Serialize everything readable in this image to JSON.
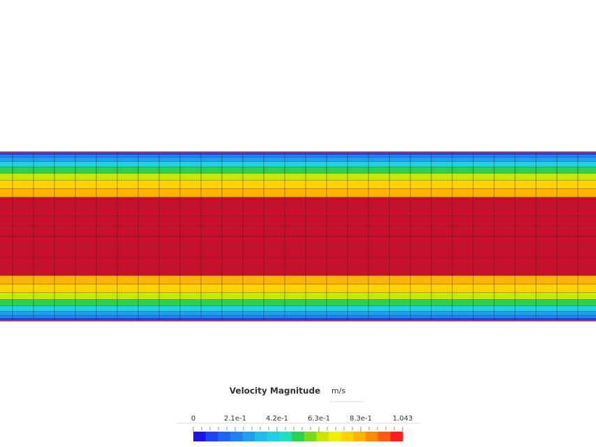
{
  "legend": {
    "title": "Velocity Magnitude",
    "unit": "m/s",
    "tick_labels": [
      "0",
      "2.1e-1",
      "4.2e-1",
      "6.3e-1",
      "8.3e-1",
      "1.043"
    ]
  }
}
